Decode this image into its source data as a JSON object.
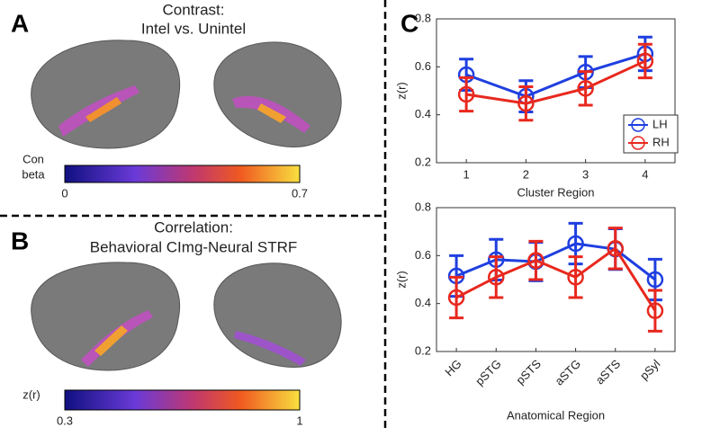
{
  "figure": {
    "panels": [
      {
        "letter": "A",
        "title": [
          "Contrast:",
          "Intel vs. Unintel"
        ],
        "colorbar": {
          "label": [
            "Con",
            "beta"
          ],
          "min": 0,
          "max": 0.7
        }
      },
      {
        "letter": "B",
        "title": [
          "Correlation:",
          "Behavioral CImg-Neural STRF"
        ],
        "colorbar": {
          "label": [
            "z(r)"
          ],
          "min": 0.3,
          "max": 1
        }
      },
      {
        "letter": "C"
      }
    ]
  },
  "chart_data": [
    {
      "type": "line",
      "x_label": "Cluster Region",
      "y_label": "z(r)",
      "categories": [
        "1",
        "2",
        "3",
        "4"
      ],
      "series": [
        {
          "name": "LH",
          "color": "#1f3fe0",
          "values": [
            0.567,
            0.477,
            0.578,
            0.654
          ],
          "errors": [
            0.065,
            0.065,
            0.065,
            0.07
          ]
        },
        {
          "name": "RH",
          "color": "#e8281e",
          "values": [
            0.485,
            0.447,
            0.51,
            0.624
          ],
          "errors": [
            0.07,
            0.07,
            0.07,
            0.07
          ]
        }
      ],
      "ylim": [
        0.2,
        0.8
      ],
      "yticks": [
        0.2,
        0.4,
        0.6,
        0.8
      ],
      "legend": "lower right"
    },
    {
      "type": "line",
      "x_label": "Anatomical Region",
      "y_label": "z(r)",
      "categories": [
        "HG",
        "pSTG",
        "pSTS",
        "aSTG",
        "aSTS",
        "pSyl"
      ],
      "series": [
        {
          "name": "LH",
          "color": "#1f3fe0",
          "values": [
            0.515,
            0.583,
            0.575,
            0.65,
            0.627,
            0.5
          ],
          "errors": [
            0.085,
            0.085,
            0.08,
            0.085,
            0.085,
            0.085
          ]
        },
        {
          "name": "RH",
          "color": "#e8281e",
          "values": [
            0.425,
            0.51,
            0.58,
            0.51,
            0.63,
            0.37
          ],
          "errors": [
            0.085,
            0.085,
            0.08,
            0.085,
            0.085,
            0.085
          ]
        }
      ],
      "ylim": [
        0.2,
        0.8
      ],
      "yticks": [
        0.2,
        0.4,
        0.6,
        0.8
      ],
      "xtick_rotation": -45
    }
  ]
}
